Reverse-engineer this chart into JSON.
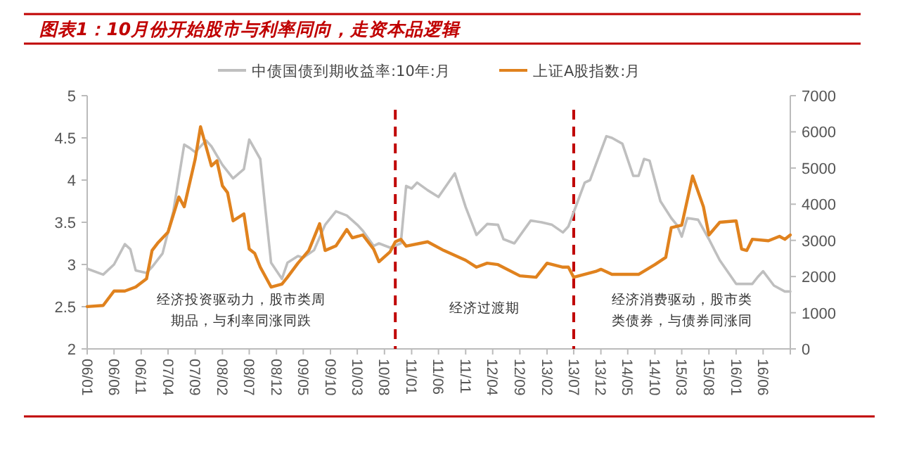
{
  "chart_data": {
    "type": "line",
    "title": "图表1：10月份开始股市与利率同向，走资本品逻辑",
    "xlim": [
      "2006-01",
      "2016-11"
    ],
    "xticks": [
      {
        "value": "2006-01",
        "label": "06/01"
      },
      {
        "value": "2006-06",
        "label": "06/06"
      },
      {
        "value": "2006-11",
        "label": "06/11"
      },
      {
        "value": "2007-04",
        "label": "07/04"
      },
      {
        "value": "2007-09",
        "label": "07/09"
      },
      {
        "value": "2008-02",
        "label": "08/02"
      },
      {
        "value": "2008-07",
        "label": "08/07"
      },
      {
        "value": "2008-12",
        "label": "08/12"
      },
      {
        "value": "2009-05",
        "label": "09/05"
      },
      {
        "value": "2009-10",
        "label": "09/10"
      },
      {
        "value": "2010-03",
        "label": "10/03"
      },
      {
        "value": "2010-08",
        "label": "10/08"
      },
      {
        "value": "2011-01",
        "label": "11/01"
      },
      {
        "value": "2011-06",
        "label": "11/06"
      },
      {
        "value": "2011-11",
        "label": "11/11"
      },
      {
        "value": "2012-04",
        "label": "12/04"
      },
      {
        "value": "2012-09",
        "label": "12/09"
      },
      {
        "value": "2013-02",
        "label": "13/02"
      },
      {
        "value": "2013-07",
        "label": "13/07"
      },
      {
        "value": "2013-12",
        "label": "13/12"
      },
      {
        "value": "2014-05",
        "label": "14/05"
      },
      {
        "value": "2014-10",
        "label": "14/10"
      },
      {
        "value": "2015-03",
        "label": "15/03"
      },
      {
        "value": "2015-08",
        "label": "15/08"
      },
      {
        "value": "2016-01",
        "label": "16/01"
      },
      {
        "value": "2016-06",
        "label": "16/06"
      },
      {
        "value": "2016-11",
        "label": null
      }
    ],
    "ylim": [
      2,
      5
    ],
    "yticks": [
      2,
      2.5,
      3,
      3.5,
      4,
      4.5,
      5
    ],
    "y2lim": [
      0,
      7000
    ],
    "y2ticks": [
      0,
      1000,
      2000,
      3000,
      4000,
      5000,
      6000,
      7000
    ],
    "legend": "top",
    "grid": false,
    "series": [
      {
        "name": "中债国债到期收益率:10年:月",
        "color": "#bfbfbf",
        "x": [
          "2006-01",
          "2006-04",
          "2006-06",
          "2006-08",
          "2006-09",
          "2006-10",
          "2006-12",
          "2007-01",
          "2007-03",
          "2007-05",
          "2007-07",
          "2007-08",
          "2007-09",
          "2007-11",
          "2007-12",
          "2008-02",
          "2008-04",
          "2008-06",
          "2008-07",
          "2008-09",
          "2008-10",
          "2008-11",
          "2009-01",
          "2009-02",
          "2009-04",
          "2009-05",
          "2009-07",
          "2009-09",
          "2009-11",
          "2010-01",
          "2010-03",
          "2010-04",
          "2010-06",
          "2010-07",
          "2010-09",
          "2010-11",
          "2010-12",
          "2011-01",
          "2011-02",
          "2011-04",
          "2011-06",
          "2011-09",
          "2011-11",
          "2012-01",
          "2012-03",
          "2012-05",
          "2012-06",
          "2012-08",
          "2012-11",
          "2013-01",
          "2013-03",
          "2013-05",
          "2013-06",
          "2013-09",
          "2013-10",
          "2014-01",
          "2014-02",
          "2014-04",
          "2014-06",
          "2014-07",
          "2014-08",
          "2014-09",
          "2014-11",
          "2015-01",
          "2015-02",
          "2015-03",
          "2015-04",
          "2015-06",
          "2015-08",
          "2015-10",
          "2016-01",
          "2016-04",
          "2016-05",
          "2016-06",
          "2016-08",
          "2016-10",
          "2016-11"
        ],
        "values": [
          2.95,
          2.88,
          3.0,
          3.24,
          3.18,
          2.93,
          2.9,
          2.97,
          3.13,
          3.63,
          4.42,
          4.38,
          4.33,
          4.47,
          4.4,
          4.18,
          4.02,
          4.13,
          4.48,
          4.25,
          3.63,
          3.02,
          2.83,
          3.02,
          3.1,
          3.08,
          3.17,
          3.47,
          3.63,
          3.58,
          3.47,
          3.4,
          3.22,
          3.25,
          3.2,
          3.25,
          3.93,
          3.9,
          3.97,
          3.88,
          3.8,
          4.08,
          3.68,
          3.35,
          3.48,
          3.47,
          3.3,
          3.25,
          3.52,
          3.5,
          3.47,
          3.38,
          3.45,
          3.97,
          4.0,
          4.52,
          4.5,
          4.43,
          4.05,
          4.05,
          4.25,
          4.23,
          3.75,
          3.55,
          3.47,
          3.33,
          3.55,
          3.53,
          3.3,
          3.05,
          2.77,
          2.77,
          2.85,
          2.92,
          2.75,
          2.68,
          2.68
        ]
      },
      {
        "name": "上证A股指数:月",
        "color": "#e0821e",
        "axis": "y2",
        "x": [
          "2006-01",
          "2006-04",
          "2006-06",
          "2006-08",
          "2006-10",
          "2006-12",
          "2007-01",
          "2007-02",
          "2007-04",
          "2007-06",
          "2007-07",
          "2007-09",
          "2007-10",
          "2007-12",
          "2008-01",
          "2008-02",
          "2008-03",
          "2008-04",
          "2008-06",
          "2008-07",
          "2008-08",
          "2008-09",
          "2008-11",
          "2009-01",
          "2009-02",
          "2009-04",
          "2009-06",
          "2009-08",
          "2009-09",
          "2009-11",
          "2010-01",
          "2010-02",
          "2010-04",
          "2010-06",
          "2010-07",
          "2010-09",
          "2010-10",
          "2010-11",
          "2010-12",
          "2011-04",
          "2011-07",
          "2011-11",
          "2012-01",
          "2012-03",
          "2012-05",
          "2012-09",
          "2012-12",
          "2013-02",
          "2013-05",
          "2013-06",
          "2013-07",
          "2013-11",
          "2013-12",
          "2014-02",
          "2014-07",
          "2014-10",
          "2014-12",
          "2015-01",
          "2015-03",
          "2015-05",
          "2015-07",
          "2015-08",
          "2015-10",
          "2016-01",
          "2016-02",
          "2016-03",
          "2016-04",
          "2016-07",
          "2016-09",
          "2016-10",
          "2016-11"
        ],
        "values": [
          1170,
          1200,
          1600,
          1600,
          1710,
          1940,
          2720,
          2920,
          3230,
          4200,
          3930,
          5250,
          6140,
          5060,
          5200,
          4510,
          4320,
          3540,
          3730,
          2760,
          2640,
          2260,
          1710,
          1790,
          1980,
          2370,
          2720,
          3460,
          2720,
          2850,
          3300,
          3070,
          3150,
          2760,
          2410,
          2680,
          2960,
          3030,
          2840,
          2960,
          2720,
          2450,
          2260,
          2370,
          2330,
          2020,
          1980,
          2370,
          2260,
          2260,
          1980,
          2140,
          2200,
          2060,
          2060,
          2330,
          2530,
          3350,
          3420,
          4780,
          3930,
          3150,
          3500,
          3540,
          2760,
          2720,
          3030,
          2990,
          3110,
          3030,
          3150
        ]
      }
    ],
    "ref_lines": [
      {
        "axis": "x",
        "value": "2010-10",
        "color": "#c00000",
        "line_style": "dashed"
      },
      {
        "axis": "x",
        "value": "2013-07",
        "color": "#c00000",
        "line_style": "dashed"
      }
    ],
    "annotations": [
      "经济投资驱动力，股市类周期品，与利率同涨同跌",
      "经济过渡期",
      "经济消费驱动，股市类类债券，与债券同涨同"
    ]
  }
}
